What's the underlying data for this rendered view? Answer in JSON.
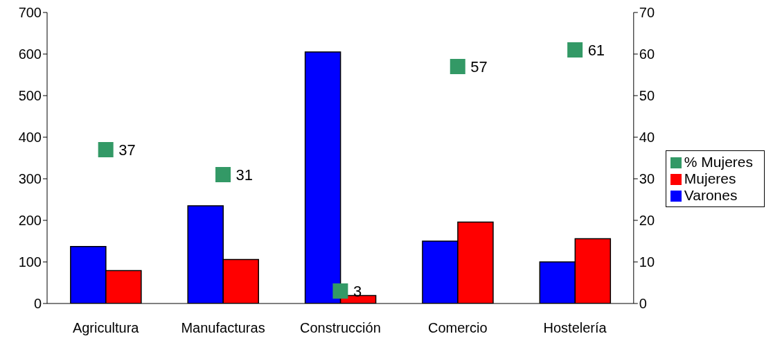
{
  "chart_data": {
    "type": "bar",
    "categories": [
      "Agricultura",
      "Manufacturas",
      "Construcción",
      "Comercio",
      "Hostelería"
    ],
    "series": [
      {
        "name": "Varones",
        "color": "#0000ff",
        "values": [
          137,
          235,
          605,
          150,
          100
        ]
      },
      {
        "name": "Mujeres",
        "color": "#ff0000",
        "values": [
          79,
          106,
          19,
          196,
          156
        ]
      },
      {
        "name": "% Mujeres",
        "color": "#339966",
        "type": "scatter",
        "axis": "y2",
        "marker": "square",
        "values": [
          37,
          31,
          3,
          57,
          61
        ],
        "value_labels": [
          "37",
          "31",
          "3",
          "57",
          "61"
        ]
      }
    ],
    "ylim": [
      0,
      700
    ],
    "yticks": [
      0,
      100,
      200,
      300,
      400,
      500,
      600,
      700
    ],
    "y2lim": [
      0,
      70
    ],
    "y2ticks": [
      0,
      10,
      20,
      30,
      40,
      50,
      60,
      70
    ],
    "legend": "right"
  }
}
